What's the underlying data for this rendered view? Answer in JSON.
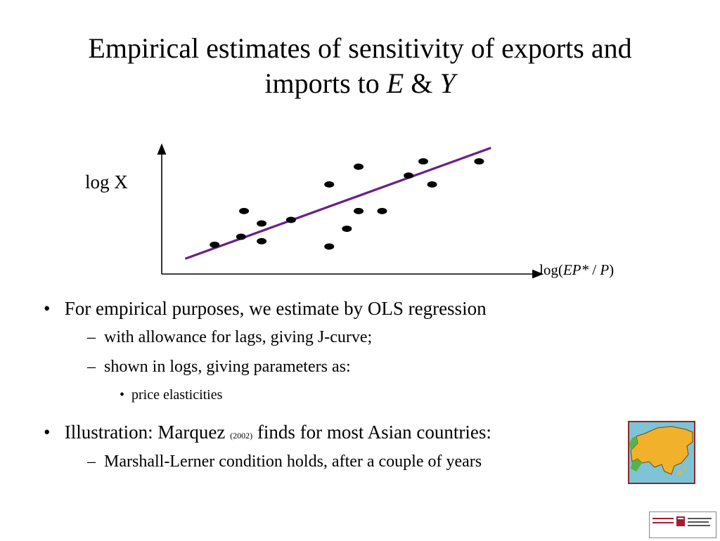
{
  "slide": {
    "title_line1": "Empirical estimates of sensitivity of exports and",
    "title_line2_prefix": "imports to ",
    "title_var_e": "E",
    "title_amp": " & ",
    "title_var_y": "Y"
  },
  "bullets": {
    "b1": "For empirical purposes, we estimate by OLS regression",
    "b1_sub1": "with allowance for lags, giving J-curve;",
    "b1_sub2": "shown in logs, giving parameters as:",
    "b1_sub2_item": "price elasticities",
    "b2_prefix": "Illustration: Marquez ",
    "b2_year": "(2002)",
    "b2_suffix": " finds for most Asian countries:",
    "b2_sub1": "Marshall-Lerner condition holds, after a couple of years"
  },
  "chart_data": {
    "type": "scatter",
    "ylabel": "log X",
    "xlabel_prefix": "log(",
    "xlabel_italic": "EP*",
    "xlabel_mid": " / ",
    "xlabel_italic2": "P",
    "xlabel_suffix": ")",
    "points": [
      [
        1.0,
        1.5
      ],
      [
        2.0,
        5.3
      ],
      [
        1.9,
        2.4
      ],
      [
        2.6,
        3.9
      ],
      [
        2.6,
        1.9
      ],
      [
        3.6,
        4.3
      ],
      [
        4.9,
        1.3
      ],
      [
        4.9,
        8.3
      ],
      [
        5.5,
        3.3
      ],
      [
        5.9,
        10.3
      ],
      [
        5.9,
        5.3
      ],
      [
        6.7,
        5.3
      ],
      [
        7.6,
        9.3
      ],
      [
        8.1,
        10.9
      ],
      [
        8.4,
        8.3
      ],
      [
        10.0,
        10.9
      ]
    ],
    "regression_line": {
      "x": [
        0.0,
        10.4
      ],
      "y": [
        0.0,
        12.5
      ]
    },
    "line_color": "#6b1f8a",
    "xlim": [
      -0.8,
      12.0
    ],
    "ylim": [
      -1.8,
      12.3
    ],
    "axis_ticks": false,
    "grid": false
  },
  "icons": {
    "map": "asia-map-icon",
    "logo": "harvard-kennedy-school-logo"
  }
}
